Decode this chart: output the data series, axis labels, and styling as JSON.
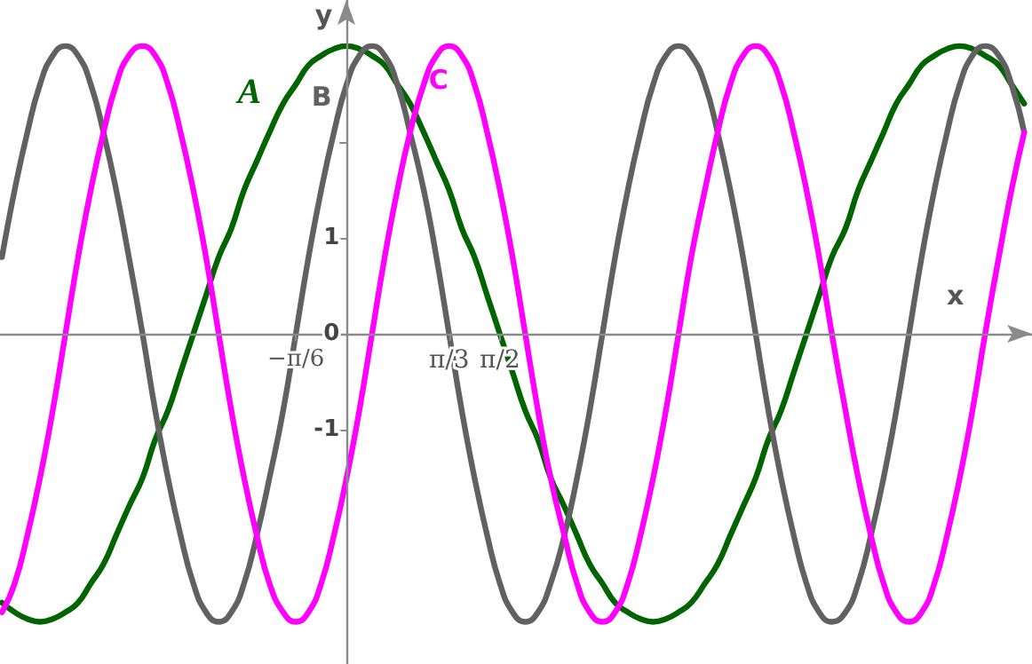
{
  "chart_data": {
    "type": "line",
    "xlabel": "x",
    "ylabel": "y",
    "x": [
      -3.53,
      -3.4,
      -3.27,
      -3.14,
      -3.01,
      -2.88,
      -2.75,
      -2.62,
      -2.49,
      -2.36,
      -2.23,
      -2.09,
      -1.96,
      -1.83,
      -1.7,
      -1.57,
      -1.44,
      -1.31,
      -1.18,
      -1.05,
      -0.92,
      -0.79,
      -0.65,
      -0.52,
      -0.39,
      -0.26,
      -0.13,
      0,
      0.13,
      0.26,
      0.39,
      0.52,
      0.65,
      0.79,
      0.92,
      1.05,
      1.18,
      1.31,
      1.44,
      1.57,
      1.7,
      1.83,
      1.96,
      2.09,
      2.23,
      2.36,
      2.49,
      2.62,
      2.75,
      2.88,
      3.01,
      3.14,
      3.27,
      3.4,
      3.53,
      3.67,
      3.8,
      3.93,
      4.06,
      4.19,
      4.32,
      4.45,
      4.58,
      4.71,
      4.84,
      4.97,
      5.11,
      5.24,
      5.37,
      5.5,
      5.63,
      5.76,
      5.89,
      6.02,
      6.15,
      6.28,
      6.41,
      6.54,
      6.68,
      6.81,
      6.94
    ],
    "series": [
      {
        "name": "A",
        "color": "#006400",
        "values": [
          -2.8,
          -2.9,
          -2.97,
          -3,
          -2.97,
          -2.9,
          -2.8,
          -2.6,
          -2.4,
          -2.1,
          -1.8,
          -1.5,
          -1.1,
          -0.8,
          -0.4,
          0,
          0.4,
          0.8,
          1.1,
          1.5,
          1.8,
          2.1,
          2.4,
          2.6,
          2.8,
          2.9,
          2.97,
          3,
          2.97,
          2.9,
          2.8,
          2.6,
          2.4,
          2.1,
          1.8,
          1.5,
          1.1,
          0.8,
          0.4,
          0,
          -0.4,
          -0.8,
          -1.1,
          -1.5,
          -1.8,
          -2.1,
          -2.4,
          -2.6,
          -2.8,
          -2.9,
          -2.97,
          -3,
          -2.97,
          -2.9,
          -2.8,
          -2.6,
          -2.4,
          -2.1,
          -1.8,
          -1.5,
          -1.1,
          -0.8,
          -0.4,
          0,
          0.4,
          0.8,
          1.1,
          1.5,
          1.8,
          2.1,
          2.4,
          2.6,
          2.8,
          2.9,
          2.97,
          3,
          2.97,
          2.9,
          2.8,
          2.6,
          2.4
        ]
      },
      {
        "name": "B",
        "color": "#616161",
        "values": [
          0.8,
          1.5,
          2.1,
          2.6,
          2.9,
          3,
          2.9,
          2.6,
          2.1,
          1.5,
          0.8,
          0,
          -0.8,
          -1.5,
          -2.1,
          -2.6,
          -2.9,
          -3,
          -2.9,
          -2.6,
          -2.1,
          -1.5,
          -0.8,
          0,
          0.8,
          1.5,
          2.1,
          2.6,
          2.9,
          3,
          2.9,
          2.6,
          2.1,
          1.5,
          0.8,
          0,
          -0.8,
          -1.5,
          -2.1,
          -2.6,
          -2.9,
          -3,
          -2.9,
          -2.6,
          -2.1,
          -1.5,
          -0.8,
          0,
          0.8,
          1.5,
          2.1,
          2.6,
          2.9,
          3,
          2.9,
          2.6,
          2.1,
          1.5,
          0.8,
          0,
          -0.8,
          -1.5,
          -2.1,
          -2.6,
          -2.9,
          -3,
          -2.9,
          -2.6,
          -2.1,
          -1.5,
          -0.8,
          0,
          0.8,
          1.5,
          2.1,
          2.6,
          2.9,
          3,
          2.9,
          2.6,
          2.1
        ]
      },
      {
        "name": "C",
        "color": "#ff00ff",
        "values": [
          -2.9,
          -2.6,
          -2.1,
          -1.5,
          -0.8,
          0,
          0.8,
          1.5,
          2.1,
          2.6,
          2.9,
          3,
          2.9,
          2.6,
          2.1,
          1.5,
          0.8,
          0,
          -0.8,
          -1.5,
          -2.1,
          -2.6,
          -2.9,
          -3,
          -2.9,
          -2.6,
          -2.1,
          -1.5,
          -0.8,
          0,
          0.8,
          1.5,
          2.1,
          2.6,
          2.9,
          3,
          2.9,
          2.6,
          2.1,
          1.5,
          0.8,
          0,
          -0.8,
          -1.5,
          -2.1,
          -2.6,
          -2.9,
          -3,
          -2.9,
          -2.6,
          -2.1,
          -1.5,
          -0.8,
          0,
          0.8,
          1.5,
          2.1,
          2.6,
          2.9,
          3,
          2.9,
          2.6,
          2.1,
          1.5,
          0.8,
          0,
          -0.8,
          -1.5,
          -2.1,
          -2.6,
          -2.9,
          -3,
          -2.9,
          -2.6,
          -2.1,
          -1.5,
          -0.8,
          0,
          0.8,
          1.5,
          2.1
        ]
      }
    ],
    "xlim": [
      -3.55,
      7.02
    ],
    "ylim": [
      -3.44,
      3.48
    ],
    "xticks": [
      {
        "value": -0.52,
        "label": "−π/6"
      },
      {
        "value": 1.05,
        "label": "π/3"
      },
      {
        "value": 1.57,
        "label": "π/2"
      }
    ],
    "yticks": [
      -1,
      0,
      1,
      {
        "value": 2,
        "label": null
      }
    ],
    "grid": false,
    "legend": false,
    "marker": "none",
    "line_style": "solid"
  }
}
